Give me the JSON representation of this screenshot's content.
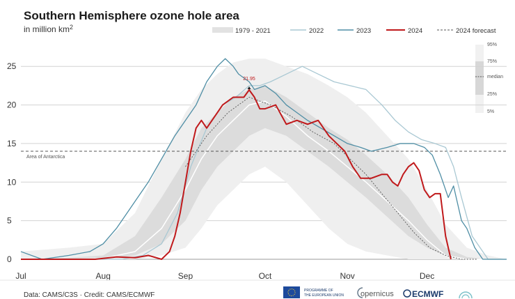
{
  "chart_data": {
    "type": "line",
    "title": "Southern Hemisphere ozone hole area",
    "subtitle_prefix": "in million km",
    "subtitle_sup": "2",
    "xlabel": "",
    "ylabel": "",
    "x_unit": "day of year",
    "xlim": [
      182,
      365
    ],
    "ylim": [
      0,
      28
    ],
    "yticks": [
      0,
      5,
      10,
      15,
      20,
      25
    ],
    "month_ticks": [
      {
        "label": "Jul",
        "day": 182
      },
      {
        "label": "Aug",
        "day": 213
      },
      {
        "label": "Sep",
        "day": 244
      },
      {
        "label": "Oct",
        "day": 274
      },
      {
        "label": "Nov",
        "day": 305
      },
      {
        "label": "Dec",
        "day": 335
      }
    ],
    "reference_line": {
      "label": "Area of Antarctica",
      "value": 14
    },
    "peak_annotation": {
      "label": "21.95",
      "day": 268,
      "value": 21.95
    },
    "legend_items": [
      "1979 - 2021",
      "2022",
      "2023",
      "2024",
      "2024 forecast"
    ],
    "percentile_legend": {
      "p95": "95%",
      "p75": "75%",
      "median": "median",
      "p25": "25%",
      "p5": "5%"
    },
    "climatology": {
      "name": "1979 - 2021",
      "x": [
        182,
        200,
        213,
        225,
        235,
        244,
        250,
        256,
        262,
        268,
        274,
        282,
        290,
        298,
        305,
        312,
        320,
        328,
        335,
        342,
        350,
        358,
        365
      ],
      "p5": [
        0,
        0,
        0,
        0,
        0.5,
        1.5,
        4,
        7,
        9,
        11,
        12,
        10,
        7,
        4,
        2,
        1,
        0.5,
        0,
        0,
        0,
        0,
        0,
        0
      ],
      "p25": [
        0,
        0,
        0,
        0.5,
        2,
        5,
        9,
        12,
        14,
        16,
        17,
        16,
        14,
        12,
        10,
        8,
        5.5,
        3,
        1.5,
        0.5,
        0,
        0,
        0
      ],
      "median": [
        0,
        0,
        0.1,
        1,
        4,
        9,
        13,
        16,
        18,
        20,
        20.5,
        18.5,
        16,
        14,
        12,
        10,
        7.5,
        5,
        2.5,
        0.5,
        0,
        0,
        0
      ],
      "p75": [
        0,
        0.2,
        0.5,
        3,
        8,
        13,
        17,
        19,
        21,
        22,
        22.5,
        21,
        19,
        17,
        15.5,
        13.5,
        11,
        8,
        4.5,
        1.5,
        0.3,
        0,
        0
      ],
      "p95": [
        1,
        1.5,
        2,
        6,
        13,
        19,
        22,
        24,
        25.5,
        26,
        26,
        25,
        24,
        22.5,
        21,
        19,
        16,
        13,
        9,
        4.5,
        1.5,
        0.5,
        0
      ]
    },
    "series": [
      {
        "name": "2022",
        "color": "#a9c8d3",
        "x": [
          182,
          195,
          210,
          220,
          228,
          235,
          241,
          246,
          252,
          258,
          263,
          268,
          272,
          276,
          282,
          288,
          294,
          300,
          306,
          312,
          318,
          323,
          328,
          333,
          338,
          342,
          345,
          348,
          352,
          358,
          365
        ],
        "values": [
          0,
          0,
          0,
          0,
          0.5,
          2,
          6,
          12,
          17,
          20,
          21,
          22.5,
          22.5,
          23,
          24,
          25,
          24,
          23,
          22.5,
          22,
          20,
          18,
          16.5,
          15.5,
          15,
          14.5,
          12,
          8,
          3,
          0,
          0
        ]
      },
      {
        "name": "2023",
        "color": "#4f8ea5",
        "x": [
          182,
          190,
          200,
          208,
          213,
          218,
          222,
          226,
          230,
          235,
          240,
          244,
          248,
          252,
          256,
          259,
          262,
          264,
          268,
          270,
          274,
          278,
          282,
          286,
          290,
          295,
          300,
          305,
          310,
          314,
          320,
          325,
          330,
          334,
          337,
          340,
          343,
          345,
          348,
          350,
          353,
          356,
          360,
          365
        ],
        "values": [
          1,
          0,
          0.5,
          1,
          2,
          4,
          6,
          8,
          10,
          13,
          16,
          18,
          20,
          23,
          25,
          26,
          25,
          24,
          23,
          22,
          22.5,
          21.5,
          20,
          19,
          18,
          17,
          16,
          15,
          14.5,
          14,
          14.5,
          15,
          15,
          14.5,
          13.5,
          11,
          8,
          9.5,
          5,
          4,
          1.5,
          0,
          0,
          0
        ]
      },
      {
        "name": "2024",
        "color": "#c0191b",
        "x": [
          182,
          195,
          210,
          218,
          225,
          230,
          235,
          238,
          240,
          242,
          244,
          246,
          248,
          250,
          252,
          256,
          258,
          262,
          266,
          268,
          270,
          272,
          274,
          278,
          282,
          286,
          290,
          294,
          298,
          301,
          304,
          307,
          310,
          314,
          318,
          320,
          322,
          324,
          326,
          328,
          330,
          332,
          334,
          336,
          338,
          340,
          342,
          344
        ],
        "values": [
          0,
          0,
          0,
          0.3,
          0.2,
          0.5,
          0,
          1,
          3,
          6,
          10,
          14,
          17,
          18,
          17,
          19,
          20,
          21,
          21,
          21.95,
          21,
          19.5,
          19.5,
          20,
          17.5,
          18,
          17.5,
          18,
          16,
          15,
          14,
          12,
          10.5,
          10.5,
          11,
          11,
          10,
          9.5,
          11,
          12,
          12.5,
          11.5,
          9,
          8,
          8.5,
          8.5,
          3,
          0
        ]
      },
      {
        "name": "2024 forecast",
        "color": "#555555",
        "x": [
          244,
          252,
          260,
          268,
          276,
          284,
          292,
          300,
          306,
          312,
          318,
          324,
          330,
          336,
          342,
          348,
          354
        ],
        "values": [
          12,
          16,
          19,
          21,
          20,
          18.5,
          16.5,
          15,
          13,
          11,
          8.5,
          6,
          3.5,
          1.5,
          0.5,
          0,
          0
        ]
      }
    ]
  },
  "footer": {
    "source": "Data: CAMS/C3S · Credit: CAMS/ECMWF"
  },
  "logos": {
    "eu_line1": "PROGRAMME OF",
    "eu_line2": "THE EUROPEAN UNION",
    "copernicus": "opernicus",
    "ecmwf": "ECMWF"
  }
}
